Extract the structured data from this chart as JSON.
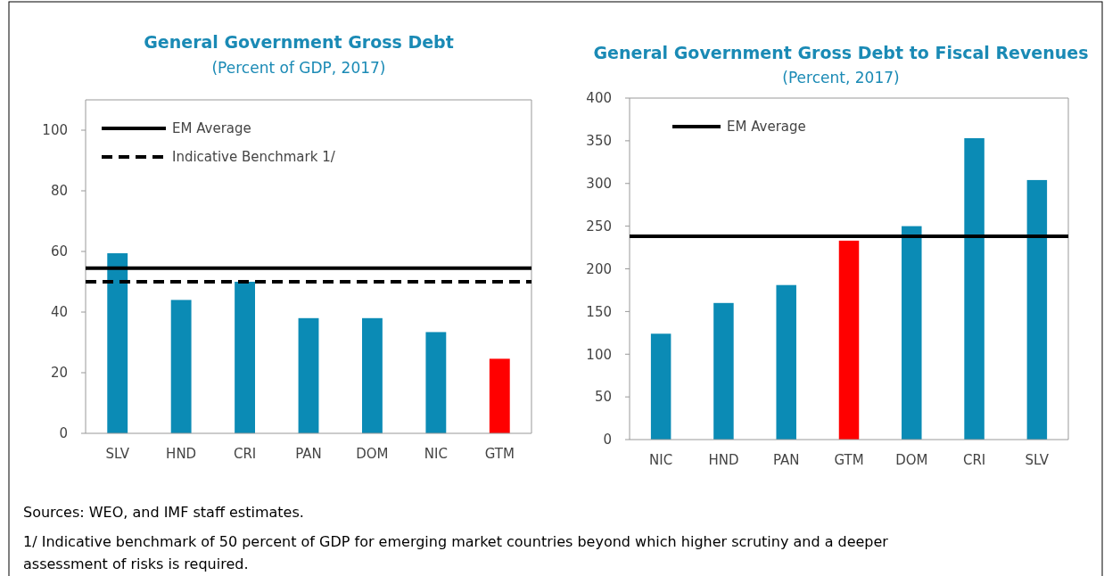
{
  "chart_data": [
    {
      "type": "bar",
      "title": "General Government Gross Debt",
      "subtitle": "(Percent of GDP, 2017)",
      "categories": [
        "SLV",
        "HND",
        "CRI",
        "PAN",
        "DOM",
        "NIC",
        "GTM"
      ],
      "values": [
        59.4,
        44,
        50,
        38,
        38,
        33.4,
        24.6
      ],
      "colors": [
        "#0b8bb5",
        "#0b8bb5",
        "#0b8bb5",
        "#0b8bb5",
        "#0b8bb5",
        "#0b8bb5",
        "#ff0000"
      ],
      "ylim": [
        0,
        110
      ],
      "yticks": [
        0,
        20,
        40,
        60,
        80,
        100
      ],
      "legend": "top left",
      "ref_lines": [
        {
          "axis": "y",
          "value": 54.5,
          "label": "EM Average",
          "color": "#000000",
          "line_style": "solid"
        },
        {
          "axis": "y",
          "value": 50,
          "label": "Indicative Benchmark 1/",
          "color": "#000000",
          "line_style": "dashed"
        }
      ],
      "annotations": [
        "Sources: WEO, and IMF staff estimates.",
        "1/ Indicative benchmark of 50 percent of GDP for emerging market countries beyond which higher scrutiny and a deeper assessment of risks is required."
      ]
    },
    {
      "type": "bar",
      "title": "General Government Gross Debt to Fiscal Revenues",
      "subtitle": "(Percent, 2017)",
      "categories": [
        "NIC",
        "HND",
        "PAN",
        "GTM",
        "DOM",
        "CRI",
        "SLV"
      ],
      "values": [
        124,
        160,
        181,
        233,
        250,
        353,
        304
      ],
      "colors": [
        "#0b8bb5",
        "#0b8bb5",
        "#0b8bb5",
        "#ff0000",
        "#0b8bb5",
        "#0b8bb5",
        "#0b8bb5"
      ],
      "ylim": [
        0,
        400
      ],
      "yticks": [
        0,
        50,
        100,
        150,
        200,
        250,
        300,
        350,
        400
      ],
      "legend": "top left",
      "ref_lines": [
        {
          "axis": "y",
          "value": 238,
          "label": "EM Average",
          "color": "#000000",
          "line_style": "solid"
        }
      ]
    }
  ]
}
